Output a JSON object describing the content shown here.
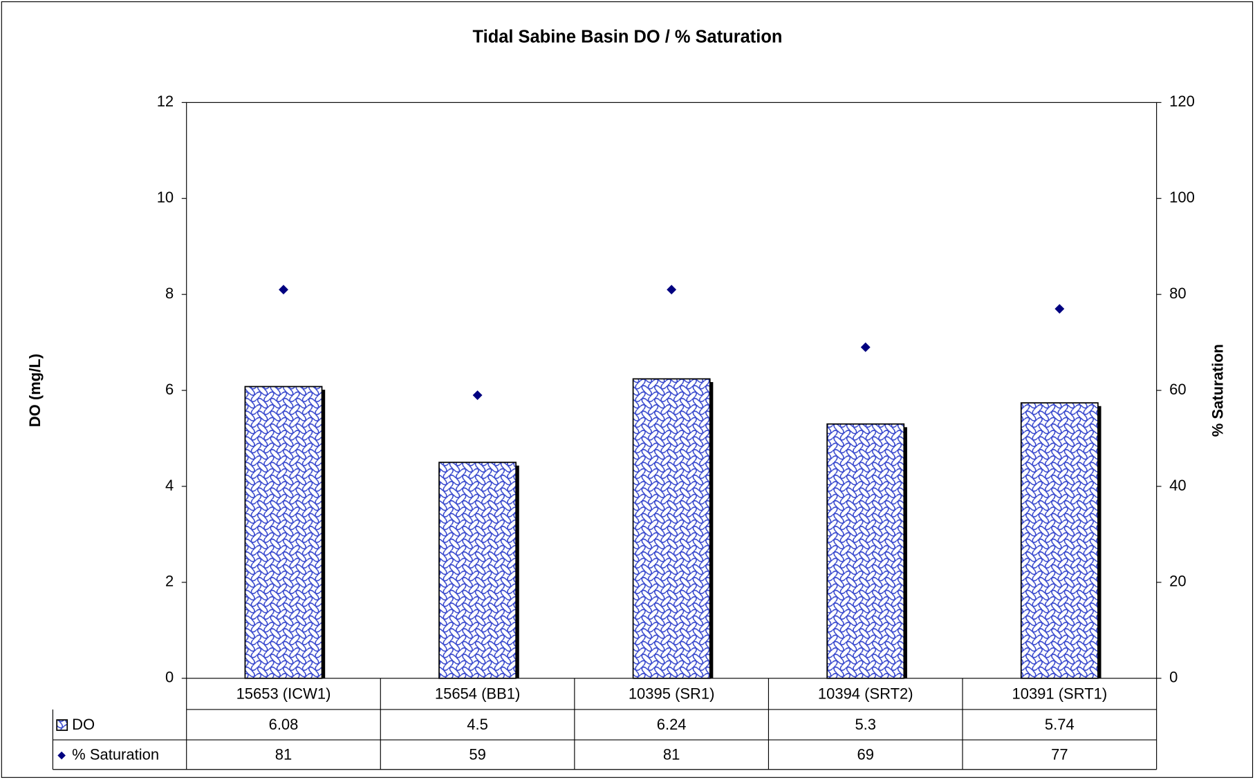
{
  "chart_data": {
    "type": "bar",
    "title": "Tidal Sabine Basin DO / % Saturation",
    "categories": [
      "15653 (ICW1)",
      "15654 (BB1)",
      "10395 (SR1)",
      "10394 (SRT2)",
      "10391 (SRT1)"
    ],
    "series": [
      {
        "name": "DO",
        "color": "#3344cc",
        "values": [
          6.08,
          4.5,
          6.24,
          5.3,
          5.74
        ]
      },
      {
        "name": "% Saturation",
        "color": "#000080",
        "type": "scatter",
        "axis": "y2",
        "values": [
          81,
          59,
          81,
          69,
          77
        ]
      }
    ],
    "y_label": "DO (mg/L)",
    "y2_label": "% Saturation",
    "ylim": [
      0,
      12
    ],
    "yticks": [
      0,
      2,
      4,
      6,
      8,
      10,
      12
    ],
    "y2lim": [
      0,
      120
    ],
    "y2ticks": [
      0,
      20,
      40,
      60,
      80,
      100,
      120
    ],
    "grid": false,
    "data_table": true
  }
}
